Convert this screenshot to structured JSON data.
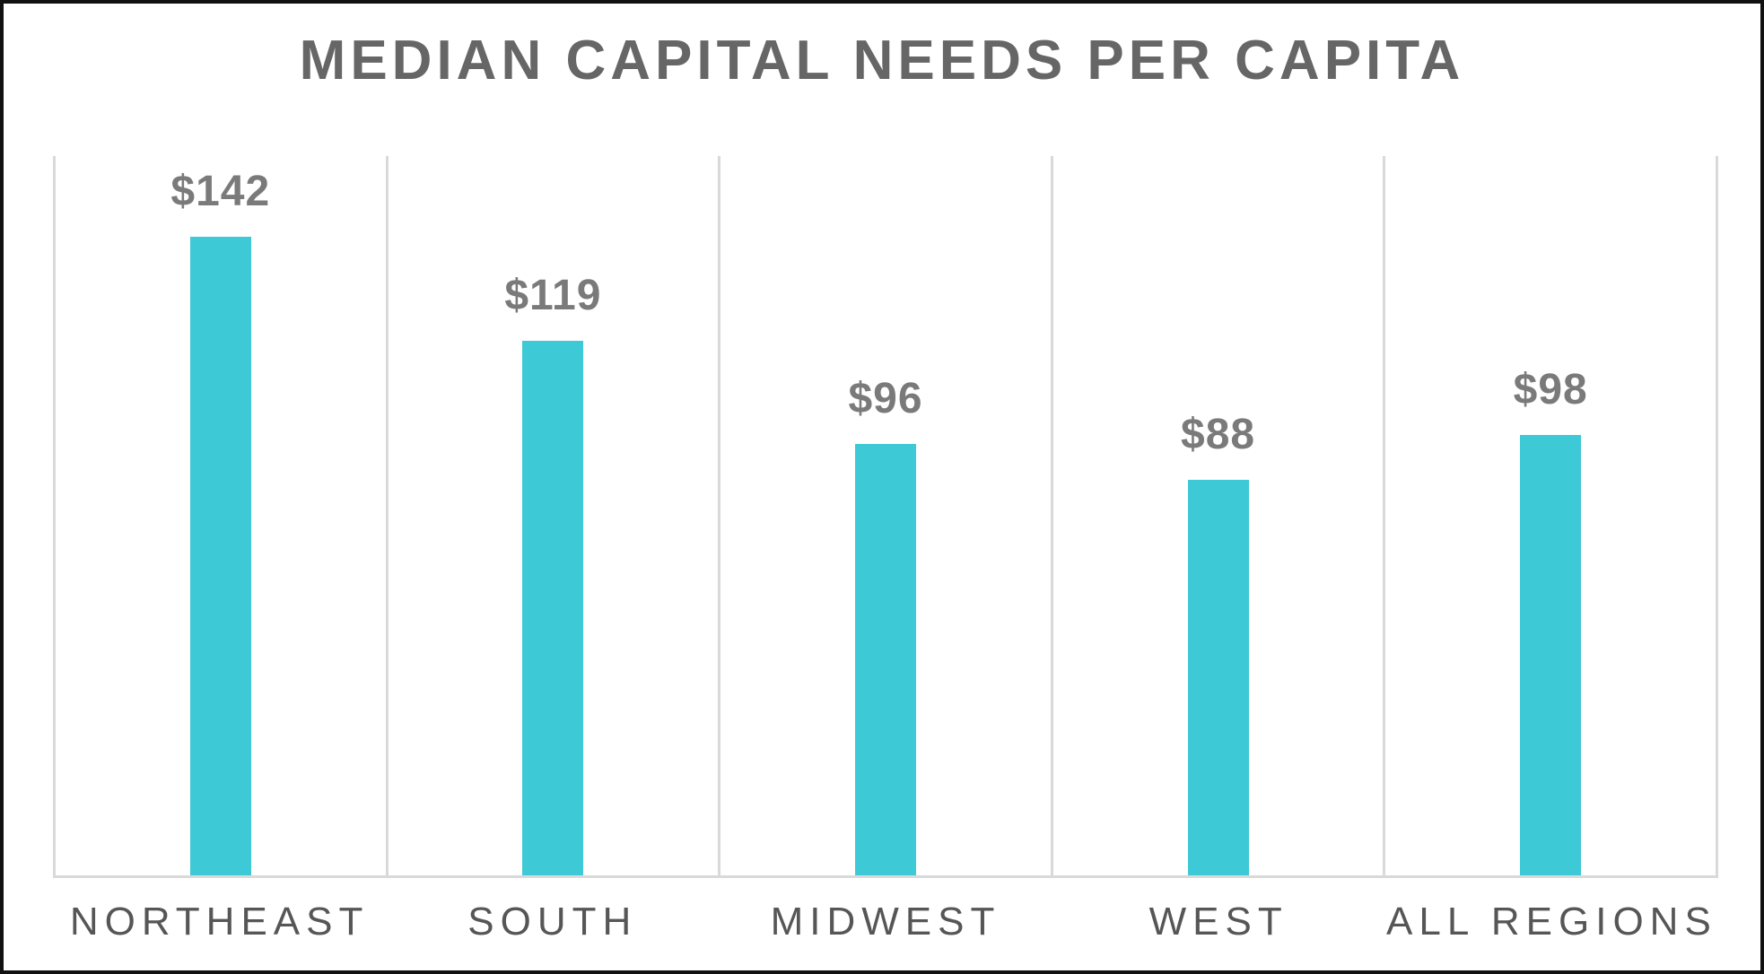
{
  "chart_data": {
    "type": "bar",
    "title": "MEDIAN CAPITAL NEEDS PER CAPITA",
    "categories": [
      "NORTHEAST",
      "SOUTH",
      "MIDWEST",
      "WEST",
      "ALL REGIONS"
    ],
    "values": [
      142,
      119,
      96,
      88,
      98
    ],
    "value_labels": [
      "$142",
      "$119",
      "$96",
      "$88",
      "$98"
    ],
    "xlabel": "",
    "ylabel": "",
    "ylim": [
      0,
      160
    ],
    "grid": "vertical-column-dividers",
    "legend": "none",
    "colors": {
      "bar": "#3ec9d6",
      "title_text": "#666666",
      "value_label_text": "#7a7a7a",
      "category_label_text": "#565656",
      "gridline": "#d9d9d9",
      "background": "#ffffff",
      "page_border": "#111111"
    }
  }
}
